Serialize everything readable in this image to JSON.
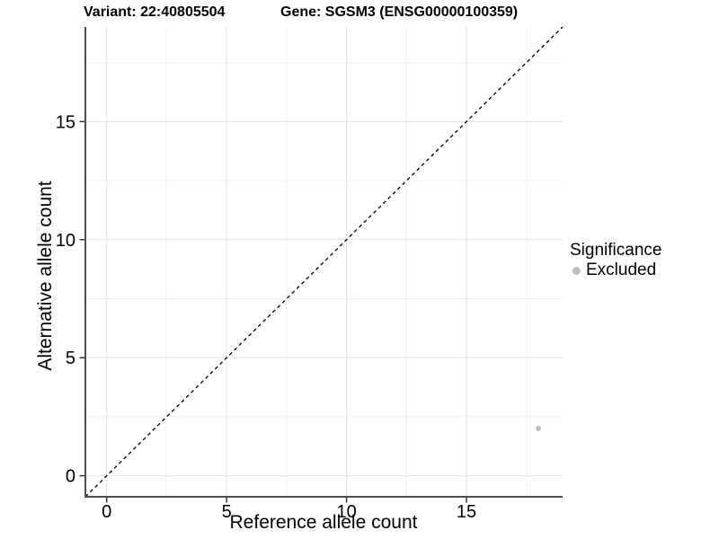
{
  "chart_data": {
    "type": "scatter",
    "titles": {
      "left": "Variant: 22:40805504",
      "right": "Gene: SGSM3 (ENSG00000100359)"
    },
    "xlabel": "Reference allele count",
    "ylabel": "Alternative allele count",
    "xlim": [
      -0.89,
      19.01
    ],
    "ylim": [
      -0.89,
      19.01
    ],
    "x_ticks": [
      0,
      5,
      10,
      15
    ],
    "y_ticks": [
      0,
      5,
      10,
      15
    ],
    "x_minor_ticks": [
      2.5,
      7.5,
      12.5,
      17.5
    ],
    "y_minor_ticks": [
      2.5,
      7.5,
      12.5,
      17.5
    ],
    "grid": "major+minor",
    "identity_line": {
      "shown": true,
      "style": "dashed",
      "color": "#000000",
      "from": [
        -0.89,
        -0.89
      ],
      "to": [
        19.01,
        19.01
      ]
    },
    "series": [
      {
        "name": "Excluded",
        "color": "#bebebe",
        "points": [
          {
            "x": 18,
            "y": 2
          }
        ]
      }
    ],
    "legend": {
      "title": "Significance",
      "position": "right",
      "items": [
        {
          "label": "Excluded",
          "color": "#bebebe",
          "marker": "circle"
        }
      ]
    },
    "colors": {
      "background": "#ffffff",
      "grid_major": "#e2e2e2",
      "grid_minor": "#efefef",
      "axis_line": "#4d4d4d",
      "tick": "#333333",
      "text": "#000000",
      "point": "#bebebe"
    }
  }
}
